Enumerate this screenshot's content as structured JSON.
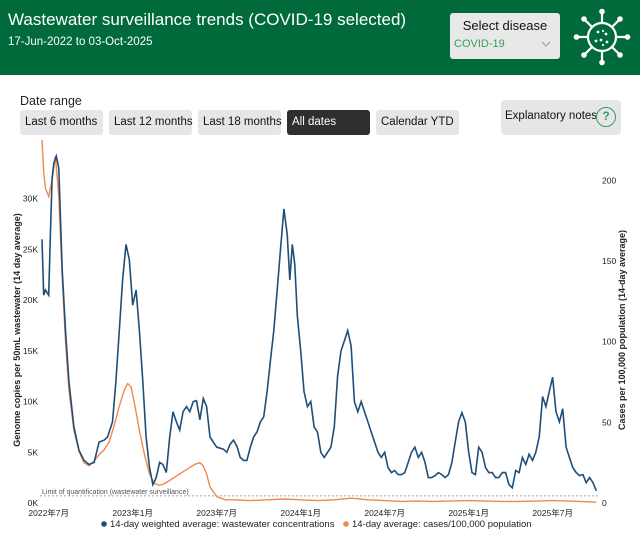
{
  "header": {
    "title": "Wastewater surveillance trends (COVID-19 selected)",
    "date_range": "17-Jun-2022 to 03-Oct-2025",
    "disease_label": "Select disease",
    "disease_value": "COVID-19",
    "logo_icon": "virus-icon",
    "dropdown_icon": "chevron-down-icon"
  },
  "controls": {
    "date_range_label": "Date range",
    "buttons": [
      "Last 6 months",
      "Last 12 months",
      "Last 18 months",
      "All dates",
      "Calendar YTD"
    ],
    "active": "All dates",
    "notes_label": "Explanatory notes",
    "notes_icon": "help-icon",
    "notes_symbol": "?"
  },
  "colors": {
    "header_bg": "#006a3b",
    "wastewater": "#1f4e79",
    "cases": "#f08a4b",
    "active_button": "#2f2f2f",
    "accent": "#3a9a5f"
  },
  "chart_data": {
    "type": "line",
    "x_ticks": [
      "2022年7月",
      "2023年1月",
      "2023年7月",
      "2024年1月",
      "2024年7月",
      "2025年1月",
      "2025年7月"
    ],
    "y_left": {
      "label": "Genome copies per 50mL wastewater (14 day average)",
      "ticks": [
        "0K",
        "5K",
        "10K",
        "15K",
        "20K",
        "25K",
        "30K"
      ],
      "range": [
        0,
        35000
      ]
    },
    "y_right": {
      "label": "Cases per 100,000 population (14-day average)",
      "ticks": [
        "0",
        "50",
        "100",
        "150",
        "200"
      ],
      "range": [
        0,
        220
      ]
    },
    "annotation": "Limit of quantification (wastewater surveillance)",
    "limit_of_quantification": 700,
    "grid": false,
    "legend_position": "bottom",
    "series": [
      {
        "name": "14-day weighted average: wastewater concentrations",
        "axis": "left",
        "points": [
          [
            2022.46,
            26000
          ],
          [
            2022.47,
            20500
          ],
          [
            2022.48,
            21000
          ],
          [
            2022.5,
            20500
          ],
          [
            2022.51,
            26500
          ],
          [
            2022.52,
            32000
          ],
          [
            2022.53,
            33500
          ],
          [
            2022.545,
            34200
          ],
          [
            2022.56,
            33000
          ],
          [
            2022.58,
            23000
          ],
          [
            2022.6,
            17000
          ],
          [
            2022.62,
            12000
          ],
          [
            2022.65,
            7500
          ],
          [
            2022.68,
            5200
          ],
          [
            2022.71,
            4200
          ],
          [
            2022.74,
            3800
          ],
          [
            2022.77,
            4000
          ],
          [
            2022.8,
            6000
          ],
          [
            2022.83,
            6200
          ],
          [
            2022.85,
            6500
          ],
          [
            2022.88,
            8000
          ],
          [
            2022.9,
            12000
          ],
          [
            2022.92,
            17000
          ],
          [
            2022.94,
            22000
          ],
          [
            2022.96,
            25500
          ],
          [
            2022.98,
            24000
          ],
          [
            2023.0,
            19500
          ],
          [
            2023.02,
            21000
          ],
          [
            2023.04,
            17000
          ],
          [
            2023.06,
            12000
          ],
          [
            2023.08,
            6500
          ],
          [
            2023.1,
            3500
          ],
          [
            2023.12,
            1800
          ],
          [
            2023.14,
            2500
          ],
          [
            2023.16,
            4000
          ],
          [
            2023.18,
            3800
          ],
          [
            2023.2,
            3000
          ],
          [
            2023.22,
            6500
          ],
          [
            2023.24,
            9000
          ],
          [
            2023.26,
            8000
          ],
          [
            2023.28,
            7200
          ],
          [
            2023.3,
            9000
          ],
          [
            2023.32,
            9500
          ],
          [
            2023.34,
            9000
          ],
          [
            2023.36,
            10000
          ],
          [
            2023.38,
            10100
          ],
          [
            2023.4,
            8200
          ],
          [
            2023.42,
            10300
          ],
          [
            2023.44,
            9500
          ],
          [
            2023.46,
            6500
          ],
          [
            2023.48,
            6000
          ],
          [
            2023.5,
            5500
          ],
          [
            2023.52,
            5400
          ],
          [
            2023.54,
            5300
          ],
          [
            2023.56,
            5000
          ],
          [
            2023.58,
            5800
          ],
          [
            2023.6,
            6200
          ],
          [
            2023.62,
            5600
          ],
          [
            2023.64,
            4500
          ],
          [
            2023.66,
            4200
          ],
          [
            2023.68,
            4200
          ],
          [
            2023.7,
            5500
          ],
          [
            2023.72,
            6500
          ],
          [
            2023.74,
            7000
          ],
          [
            2023.76,
            8000
          ],
          [
            2023.78,
            8500
          ],
          [
            2023.8,
            11000
          ],
          [
            2023.82,
            14000
          ],
          [
            2023.84,
            17000
          ],
          [
            2023.86,
            21000
          ],
          [
            2023.88,
            25000
          ],
          [
            2023.9,
            29000
          ],
          [
            2023.92,
            26500
          ],
          [
            2023.935,
            22000
          ],
          [
            2023.95,
            25500
          ],
          [
            2023.965,
            23500
          ],
          [
            2023.98,
            18500
          ],
          [
            2024.0,
            15000
          ],
          [
            2024.02,
            11000
          ],
          [
            2024.04,
            9500
          ],
          [
            2024.06,
            10000
          ],
          [
            2024.08,
            7500
          ],
          [
            2024.1,
            7000
          ],
          [
            2024.12,
            5000
          ],
          [
            2024.14,
            4500
          ],
          [
            2024.16,
            5000
          ],
          [
            2024.18,
            5500
          ],
          [
            2024.2,
            7500
          ],
          [
            2024.22,
            12500
          ],
          [
            2024.24,
            15000
          ],
          [
            2024.26,
            16000
          ],
          [
            2024.28,
            17000
          ],
          [
            2024.3,
            15500
          ],
          [
            2024.32,
            10000
          ],
          [
            2024.34,
            9000
          ],
          [
            2024.36,
            10000
          ],
          [
            2024.38,
            9000
          ],
          [
            2024.4,
            8000
          ],
          [
            2024.42,
            7000
          ],
          [
            2024.44,
            6000
          ],
          [
            2024.46,
            5000
          ],
          [
            2024.48,
            4500
          ],
          [
            2024.5,
            5000
          ],
          [
            2024.52,
            3500
          ],
          [
            2024.54,
            3000
          ],
          [
            2024.56,
            3200
          ],
          [
            2024.58,
            2800
          ],
          [
            2024.6,
            2800
          ],
          [
            2024.62,
            3000
          ],
          [
            2024.64,
            4000
          ],
          [
            2024.66,
            5000
          ],
          [
            2024.68,
            5500
          ],
          [
            2024.7,
            4500
          ],
          [
            2024.72,
            5000
          ],
          [
            2024.74,
            4000
          ],
          [
            2024.76,
            2500
          ],
          [
            2024.78,
            2500
          ],
          [
            2024.8,
            2700
          ],
          [
            2024.82,
            3000
          ],
          [
            2024.84,
            2800
          ],
          [
            2024.86,
            2500
          ],
          [
            2024.88,
            2800
          ],
          [
            2024.9,
            4000
          ],
          [
            2024.92,
            6000
          ],
          [
            2024.94,
            8000
          ],
          [
            2024.96,
            8900
          ],
          [
            2024.98,
            8000
          ],
          [
            2025.0,
            5000
          ],
          [
            2025.02,
            3000
          ],
          [
            2025.04,
            2800
          ],
          [
            2025.06,
            5500
          ],
          [
            2025.08,
            5000
          ],
          [
            2025.1,
            3500
          ],
          [
            2025.12,
            3000
          ],
          [
            2025.14,
            3000
          ],
          [
            2025.16,
            2500
          ],
          [
            2025.18,
            2500
          ],
          [
            2025.2,
            3000
          ],
          [
            2025.22,
            3000
          ],
          [
            2025.24,
            1800
          ],
          [
            2025.26,
            1500
          ],
          [
            2025.28,
            3200
          ],
          [
            2025.3,
            3000
          ],
          [
            2025.32,
            4500
          ],
          [
            2025.34,
            3800
          ],
          [
            2025.36,
            4800
          ],
          [
            2025.38,
            4200
          ],
          [
            2025.4,
            5000
          ],
          [
            2025.42,
            6500
          ],
          [
            2025.44,
            10500
          ],
          [
            2025.46,
            9500
          ],
          [
            2025.48,
            11000
          ],
          [
            2025.5,
            12400
          ],
          [
            2025.52,
            9000
          ],
          [
            2025.54,
            8000
          ],
          [
            2025.56,
            9300
          ],
          [
            2025.58,
            5500
          ],
          [
            2025.6,
            4500
          ],
          [
            2025.62,
            3500
          ],
          [
            2025.64,
            3000
          ],
          [
            2025.66,
            2700
          ],
          [
            2025.68,
            2800
          ],
          [
            2025.7,
            2000
          ],
          [
            2025.72,
            2500
          ],
          [
            2025.74,
            2000
          ],
          [
            2025.76,
            1200
          ]
        ]
      },
      {
        "name": "14-day average: cases/100,000 population",
        "axis": "right",
        "points": [
          [
            2022.46,
            225
          ],
          [
            2022.47,
            205
          ],
          [
            2022.48,
            195
          ],
          [
            2022.5,
            190
          ],
          [
            2022.52,
            200
          ],
          [
            2022.54,
            215
          ],
          [
            2022.56,
            190
          ],
          [
            2022.58,
            140
          ],
          [
            2022.6,
            100
          ],
          [
            2022.62,
            70
          ],
          [
            2022.65,
            45
          ],
          [
            2022.68,
            32
          ],
          [
            2022.71,
            25
          ],
          [
            2022.74,
            23
          ],
          [
            2022.77,
            26
          ],
          [
            2022.8,
            30
          ],
          [
            2022.83,
            33
          ],
          [
            2022.86,
            38
          ],
          [
            2022.89,
            48
          ],
          [
            2022.92,
            60
          ],
          [
            2022.95,
            70
          ],
          [
            2022.97,
            74
          ],
          [
            2022.99,
            72
          ],
          [
            2023.01,
            62
          ],
          [
            2023.04,
            45
          ],
          [
            2023.07,
            30
          ],
          [
            2023.1,
            18
          ],
          [
            2023.13,
            12
          ],
          [
            2023.16,
            11
          ],
          [
            2023.19,
            12
          ],
          [
            2023.22,
            14
          ],
          [
            2023.25,
            16
          ],
          [
            2023.28,
            18
          ],
          [
            2023.31,
            20
          ],
          [
            2023.34,
            22
          ],
          [
            2023.37,
            24
          ],
          [
            2023.4,
            25
          ],
          [
            2023.42,
            23
          ],
          [
            2023.44,
            18
          ],
          [
            2023.46,
            10
          ],
          [
            2023.5,
            4
          ],
          [
            2023.55,
            2
          ],
          [
            2023.6,
            2
          ],
          [
            2023.7,
            1.5
          ],
          [
            2023.8,
            2
          ],
          [
            2023.9,
            2.5
          ],
          [
            2024.0,
            2
          ],
          [
            2024.1,
            1.5
          ],
          [
            2024.2,
            2
          ],
          [
            2024.3,
            3
          ],
          [
            2024.4,
            2
          ],
          [
            2024.5,
            1.5
          ],
          [
            2024.6,
            1
          ],
          [
            2024.7,
            1.2
          ],
          [
            2024.8,
            1
          ],
          [
            2024.9,
            1.3
          ],
          [
            2025.0,
            1.5
          ],
          [
            2025.1,
            1.2
          ],
          [
            2025.2,
            1
          ],
          [
            2025.3,
            1
          ],
          [
            2025.4,
            1.2
          ],
          [
            2025.5,
            1.5
          ],
          [
            2025.6,
            1.2
          ],
          [
            2025.7,
            0.8
          ],
          [
            2025.76,
            0.5
          ]
        ]
      }
    ]
  }
}
